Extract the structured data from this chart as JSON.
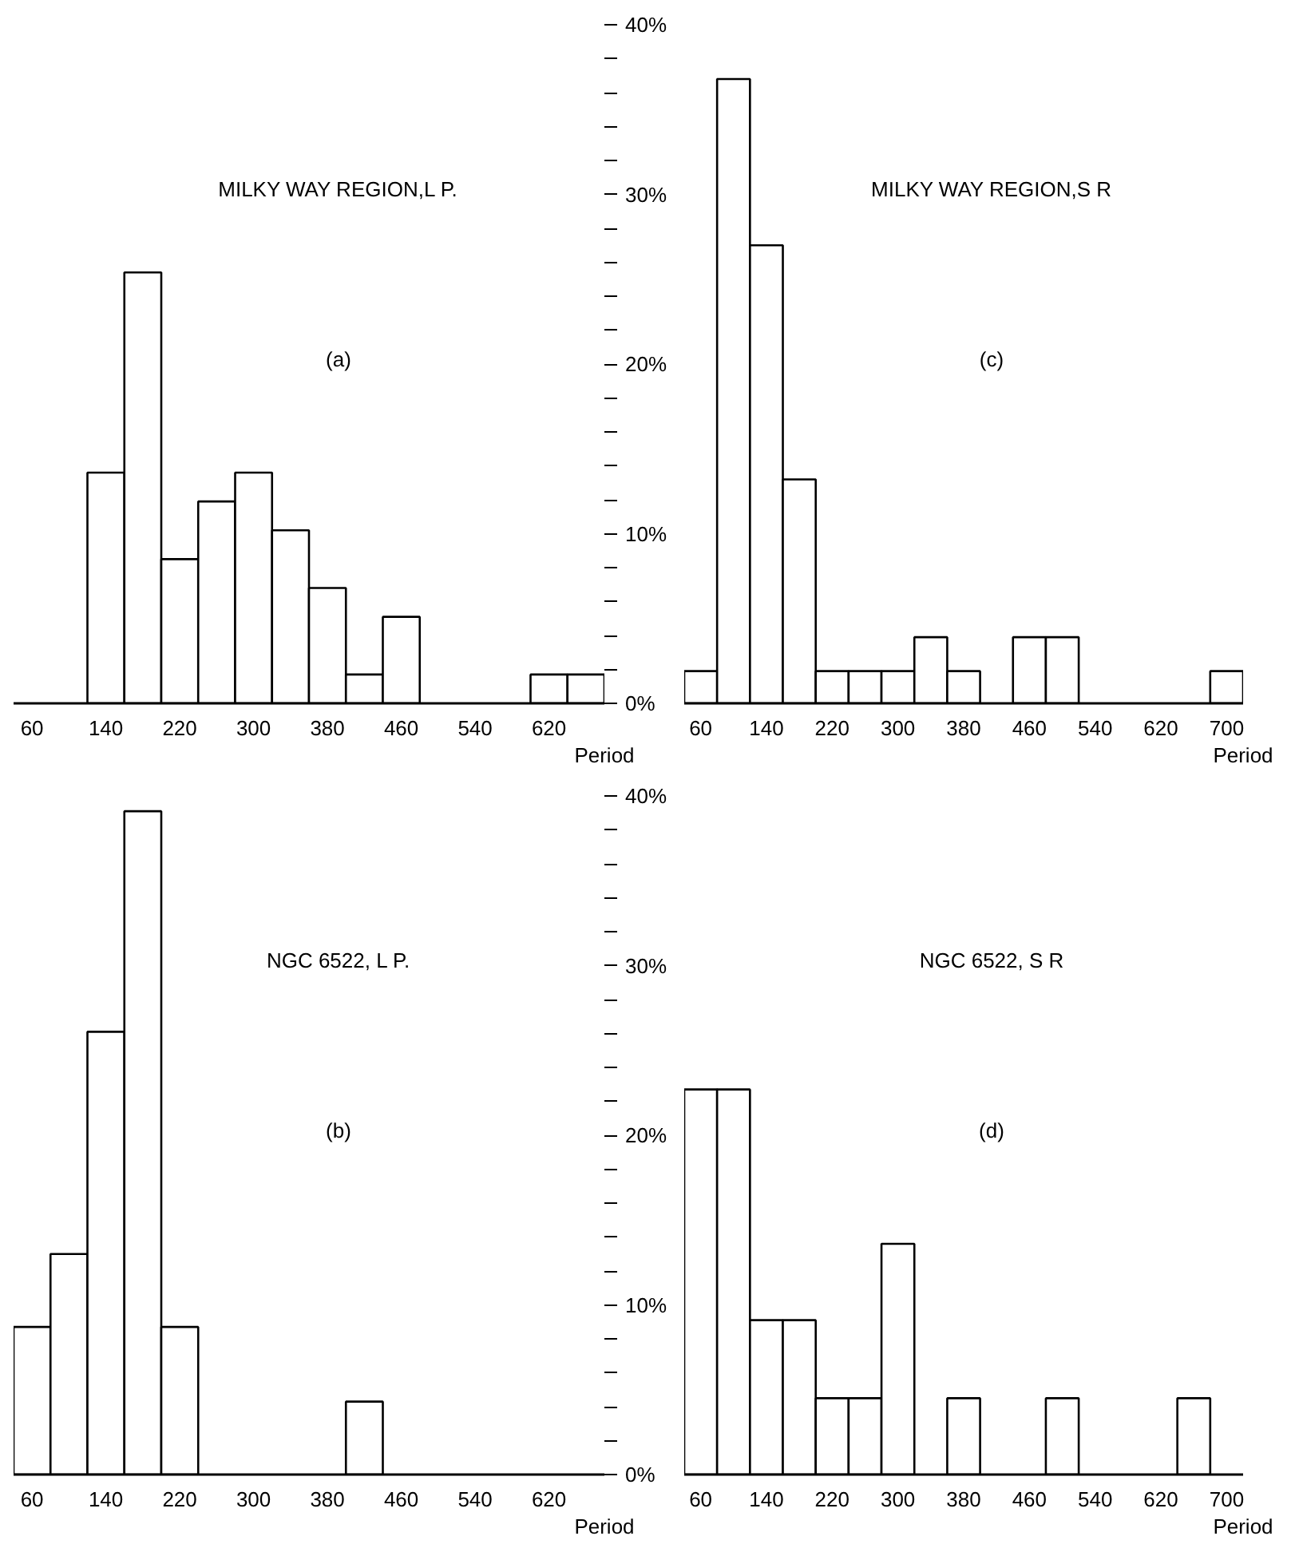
{
  "chart_data": [
    {
      "type": "histogram",
      "title": "MILKY WAY REGION,L P.",
      "annotations": [
        "(a)"
      ],
      "xlabel": "Period",
      "bins": [
        40,
        80,
        120,
        160,
        200,
        240,
        280,
        320,
        360,
        400,
        440,
        480,
        520,
        560,
        600,
        640,
        680
      ],
      "values": [
        0,
        0,
        13.6,
        25.4,
        8.5,
        11.9,
        13.6,
        10.2,
        6.8,
        1.7,
        5.1,
        0,
        0,
        0,
        1.7,
        1.7
      ],
      "color": "#ffffff",
      "xlim": [
        40,
        680
      ],
      "xticks": [
        60,
        140,
        220,
        300,
        380,
        460,
        540,
        620
      ],
      "ylim": [
        0,
        40
      ],
      "yticks": [
        {
          "value": 0,
          "label": "0%"
        },
        {
          "value": 2,
          "label": null
        },
        {
          "value": 4,
          "label": null
        },
        {
          "value": 6,
          "label": null
        },
        {
          "value": 8,
          "label": null
        },
        {
          "value": 10,
          "label": "10%"
        },
        {
          "value": 12,
          "label": null
        },
        {
          "value": 14,
          "label": null
        },
        {
          "value": 16,
          "label": null
        },
        {
          "value": 18,
          "label": null
        },
        {
          "value": 20,
          "label": "20%"
        },
        {
          "value": 22,
          "label": null
        },
        {
          "value": 24,
          "label": null
        },
        {
          "value": 26,
          "label": null
        },
        {
          "value": 28,
          "label": null
        },
        {
          "value": 30,
          "label": "30%"
        },
        {
          "value": 32,
          "label": null
        },
        {
          "value": 34,
          "label": null
        },
        {
          "value": 36,
          "label": null
        },
        {
          "value": 38,
          "label": null
        },
        {
          "value": 40,
          "label": "40%"
        }
      ],
      "grid": false
    },
    {
      "type": "histogram",
      "title": "MILKY WAY REGION,S R",
      "annotations": [
        "(c)"
      ],
      "xlabel": "Period",
      "bins": [
        40,
        80,
        120,
        160,
        200,
        240,
        280,
        320,
        360,
        400,
        440,
        480,
        520,
        560,
        600,
        640,
        680,
        720
      ],
      "values": [
        1.9,
        36.8,
        27.0,
        13.2,
        1.9,
        1.9,
        1.9,
        3.9,
        1.9,
        0,
        3.9,
        3.9,
        0,
        0,
        0,
        0,
        1.9
      ],
      "color": "#ffffff",
      "xlim": [
        40,
        720
      ],
      "xticks": [
        60,
        140,
        220,
        300,
        380,
        460,
        540,
        620,
        700
      ],
      "ylim": [
        0,
        40
      ],
      "tick_labels": "x",
      "grid": false
    },
    {
      "type": "histogram",
      "title": "NGC 6522, L P.",
      "annotations": [
        "(b)"
      ],
      "xlabel": "Period",
      "bins": [
        40,
        80,
        120,
        160,
        200,
        240,
        280,
        320,
        360,
        400,
        440,
        480,
        520,
        560,
        600,
        640,
        680
      ],
      "values": [
        8.7,
        13.0,
        26.1,
        39.1,
        8.7,
        0,
        0,
        0,
        0,
        4.3,
        0,
        0,
        0,
        0,
        0,
        0
      ],
      "color": "#ffffff",
      "xlim": [
        40,
        680
      ],
      "xticks": [
        60,
        140,
        220,
        300,
        380,
        460,
        540,
        620
      ],
      "ylim": [
        0,
        40
      ],
      "yticks": [
        {
          "value": 0,
          "label": "0%"
        },
        {
          "value": 2,
          "label": null
        },
        {
          "value": 4,
          "label": null
        },
        {
          "value": 6,
          "label": null
        },
        {
          "value": 8,
          "label": null
        },
        {
          "value": 10,
          "label": "10%"
        },
        {
          "value": 12,
          "label": null
        },
        {
          "value": 14,
          "label": null
        },
        {
          "value": 16,
          "label": null
        },
        {
          "value": 18,
          "label": null
        },
        {
          "value": 20,
          "label": "20%"
        },
        {
          "value": 22,
          "label": null
        },
        {
          "value": 24,
          "label": null
        },
        {
          "value": 26,
          "label": null
        },
        {
          "value": 28,
          "label": null
        },
        {
          "value": 30,
          "label": "30%"
        },
        {
          "value": 32,
          "label": null
        },
        {
          "value": 34,
          "label": null
        },
        {
          "value": 36,
          "label": null
        },
        {
          "value": 38,
          "label": null
        },
        {
          "value": 40,
          "label": "40%"
        }
      ],
      "grid": false
    },
    {
      "type": "histogram",
      "title": "NGC 6522, S R",
      "annotations": [
        "(d)"
      ],
      "xlabel": "Period",
      "bins": [
        40,
        80,
        120,
        160,
        200,
        240,
        280,
        320,
        360,
        400,
        440,
        480,
        520,
        560,
        600,
        640,
        680,
        720
      ],
      "values": [
        22.7,
        22.7,
        9.1,
        9.1,
        4.5,
        4.5,
        13.6,
        0,
        4.5,
        0,
        0,
        4.5,
        0,
        0,
        0,
        4.5,
        0
      ],
      "color": "#ffffff",
      "xlim": [
        40,
        720
      ],
      "xticks": [
        60,
        140,
        220,
        300,
        380,
        460,
        540,
        620,
        700
      ],
      "ylim": [
        0,
        40
      ],
      "tick_labels": "x",
      "grid": false
    }
  ]
}
